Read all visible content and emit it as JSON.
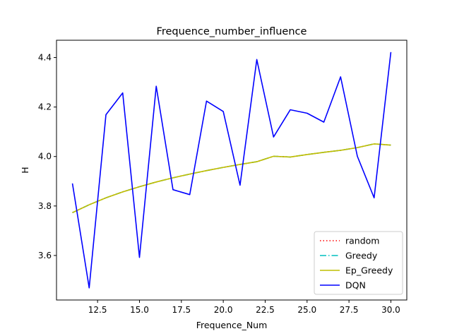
{
  "chart_data": {
    "type": "line",
    "title": "Frequence_number_influence",
    "xlabel": "Frequence_Num",
    "ylabel": "H",
    "xlim": [
      10.05,
      30.95
    ],
    "ylim": [
      3.42,
      4.47
    ],
    "xticks": [
      12.5,
      15.0,
      17.5,
      20.0,
      22.5,
      25.0,
      27.5,
      30.0
    ],
    "xtick_labels": [
      "12.5",
      "15.0",
      "17.5",
      "20.0",
      "22.5",
      "25.0",
      "27.5",
      "30.0"
    ],
    "yticks": [
      3.6,
      3.8,
      4.0,
      4.2,
      4.4
    ],
    "ytick_labels": [
      "3.6",
      "3.8",
      "4.0",
      "4.2",
      "4.4"
    ],
    "grid": false,
    "legend_position": "lower right",
    "x": [
      11,
      12,
      13,
      14,
      15,
      16,
      17,
      18,
      19,
      20,
      21,
      22,
      23,
      24,
      25,
      26,
      27,
      28,
      29,
      30
    ],
    "series": [
      {
        "name": "random",
        "color": "#ff0000",
        "linestyle": "dotted",
        "values": [
          3.773,
          3.805,
          3.833,
          3.857,
          3.878,
          3.897,
          3.914,
          3.929,
          3.943,
          3.956,
          3.968,
          3.979,
          4.001,
          3.998,
          4.008,
          4.017,
          4.025,
          4.036,
          4.051,
          4.046
        ]
      },
      {
        "name": "Greedy",
        "color": "#00bfbf",
        "linestyle": "dashdot",
        "values": [
          3.773,
          3.805,
          3.833,
          3.857,
          3.878,
          3.897,
          3.914,
          3.929,
          3.943,
          3.956,
          3.968,
          3.979,
          4.001,
          3.998,
          4.008,
          4.017,
          4.025,
          4.036,
          4.051,
          4.046
        ]
      },
      {
        "name": "Ep_Greedy",
        "color": "#bfbf00",
        "linestyle": "solid",
        "values": [
          3.773,
          3.805,
          3.833,
          3.857,
          3.878,
          3.897,
          3.914,
          3.929,
          3.943,
          3.956,
          3.968,
          3.979,
          4.001,
          3.998,
          4.008,
          4.017,
          4.025,
          4.036,
          4.051,
          4.046
        ]
      },
      {
        "name": "DQN",
        "color": "#0000ff",
        "linestyle": "solid",
        "values": [
          3.891,
          3.469,
          4.169,
          4.257,
          3.592,
          4.284,
          3.866,
          3.846,
          4.224,
          4.182,
          3.884,
          4.392,
          4.079,
          4.189,
          4.175,
          4.139,
          4.322,
          4.001,
          3.833,
          4.422
        ]
      }
    ]
  }
}
